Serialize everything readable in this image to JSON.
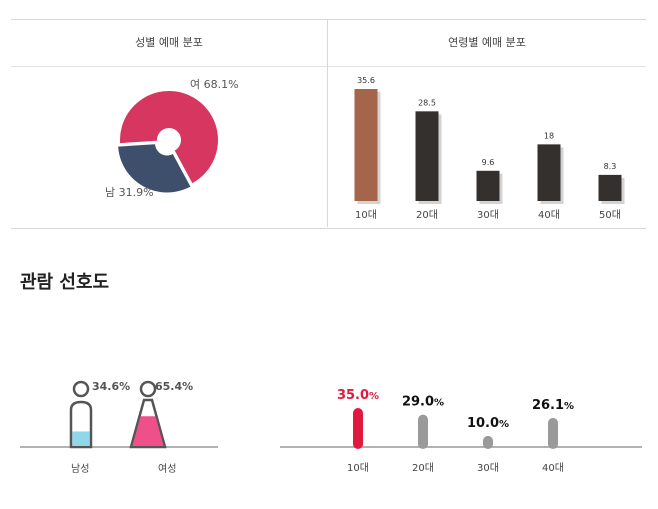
{
  "gender_booking": {
    "title": "성별 예매 분포",
    "slices": [
      {
        "label": "여",
        "value": 68.1,
        "text": "여 68.1%",
        "color": "#d6365f"
      },
      {
        "label": "남",
        "value": 31.9,
        "text": "남 31.9%",
        "color": "#3d4f6b"
      }
    ]
  },
  "age_booking": {
    "title": "연령별 예매 분포",
    "categories": [
      "10대",
      "20대",
      "30대",
      "40대",
      "50대"
    ],
    "values": [
      35.6,
      28.5,
      9.6,
      18,
      8.3
    ],
    "value_labels": [
      "35.6",
      "28.5",
      "9.6",
      "18",
      "8.3"
    ],
    "highlight_color": "#a4654a",
    "bar_color": "#33302d"
  },
  "preference": {
    "title": "관람 선호도",
    "gender": [
      {
        "label": "남성",
        "value": 34.6,
        "text": "34.6%",
        "color": "#8fd8ea"
      },
      {
        "label": "여성",
        "value": 65.4,
        "text": "65.4%",
        "color": "#f0508a"
      }
    ],
    "age": {
      "categories": [
        "10대",
        "20대",
        "30대",
        "40대"
      ],
      "values": [
        35.0,
        29.0,
        10.0,
        26.1
      ],
      "value_labels": [
        "35.0",
        "29.0",
        "10.0",
        "26.1"
      ],
      "unit": "%",
      "highlight_color": "#e1193f",
      "bar_color": "#9a9a9a"
    }
  },
  "chart_data": [
    {
      "type": "pie",
      "title": "성별 예매 분포",
      "categories": [
        "여",
        "남"
      ],
      "values": [
        68.1,
        31.9
      ]
    },
    {
      "type": "bar",
      "title": "연령별 예매 분포",
      "categories": [
        "10대",
        "20대",
        "30대",
        "40대",
        "50대"
      ],
      "values": [
        35.6,
        28.5,
        9.6,
        18,
        8.3
      ]
    },
    {
      "type": "bar",
      "title": "관람 선호도",
      "categories": [
        "남성",
        "여성"
      ],
      "values": [
        34.6,
        65.4
      ]
    },
    {
      "type": "bar",
      "title": "관람 선호도",
      "categories": [
        "10대",
        "20대",
        "30대",
        "40대"
      ],
      "values": [
        35.0,
        29.0,
        10.0,
        26.1
      ]
    }
  ]
}
